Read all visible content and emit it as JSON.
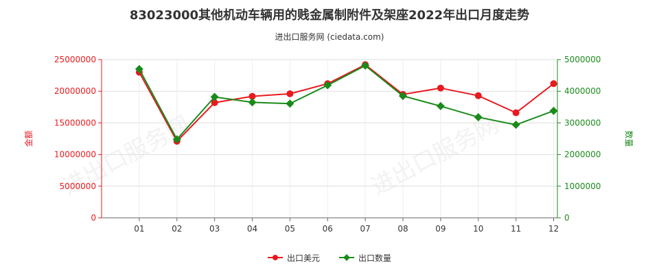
{
  "title": "83023000其他机动车辆用的贱金属制附件及架座2022年出口月度走势",
  "subtitle": "进出口服务网 (ciedata.com)",
  "watermark": "进出口服务网",
  "colors": {
    "value_series": "#e8191f",
    "quantity_series": "#1a8a1a",
    "left_axis": "#e8191f",
    "right_axis": "#1a8a1a",
    "grid": "#dddddd"
  },
  "chart_data": {
    "type": "line",
    "categories": [
      "01",
      "02",
      "03",
      "04",
      "05",
      "06",
      "07",
      "08",
      "09",
      "10",
      "11",
      "12"
    ],
    "ylabel_left": "金额",
    "ylabel_right": "数量",
    "ylim_left": [
      0,
      25000000
    ],
    "ylim_right": [
      0,
      5000000
    ],
    "yticks_left": [
      "0",
      "5000000",
      "10000000",
      "15000000",
      "20000000",
      "25000000"
    ],
    "yticks_right": [
      "0",
      "1000000",
      "2000000",
      "3000000",
      "4000000",
      "5000000"
    ],
    "grid": true,
    "legend_position": "bottom",
    "series": [
      {
        "name": "出口美元",
        "axis": "left",
        "marker": "circle",
        "values": [
          23000000,
          12100000,
          18200000,
          19200000,
          19600000,
          21200000,
          24200000,
          19500000,
          20500000,
          19300000,
          16600000,
          21200000
        ]
      },
      {
        "name": "出口数量",
        "axis": "right",
        "marker": "diamond",
        "values": [
          4700000,
          2480000,
          3820000,
          3650000,
          3610000,
          4190000,
          4810000,
          3850000,
          3530000,
          3180000,
          2940000,
          3380000
        ]
      }
    ]
  }
}
